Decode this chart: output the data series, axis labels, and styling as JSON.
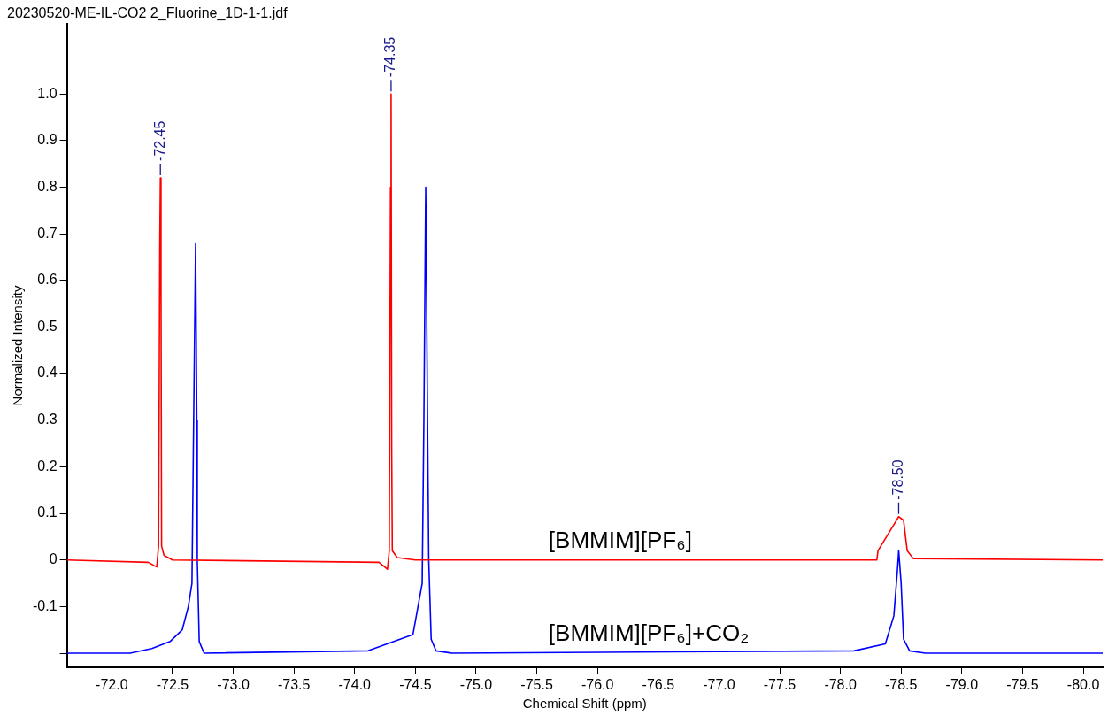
{
  "chart_data": {
    "type": "line",
    "title": "20230520-ME-IL-CO2 2_Fluorine_1D-1-1.jdf",
    "xlabel": "Chemical Shift (ppm)",
    "ylabel": "Normalized Intensity",
    "xlim": [
      -71.63,
      -80.16
    ],
    "xticks": [
      {
        "value": -72,
        "label": "-72.0"
      },
      -72.5,
      {
        "value": -73,
        "label": "-73.0"
      },
      -73.5,
      {
        "value": -74,
        "label": "-74.0"
      },
      -74.5,
      {
        "value": -75,
        "label": "-75.0"
      },
      -75.5,
      {
        "value": -76,
        "label": "-76.0"
      },
      -76.5,
      {
        "value": -77,
        "label": "-77.0"
      },
      -77.5,
      {
        "value": -78,
        "label": "-78.0"
      },
      -78.5,
      {
        "value": -79,
        "label": "-79.0"
      },
      -79.5,
      {
        "value": -80,
        "label": "-80.0"
      }
    ],
    "ylim": [
      -0.23,
      1.15
    ],
    "yticks": [
      {
        "value": -0.2,
        "label": null
      },
      -0.1,
      0,
      0.1,
      0.2,
      0.3,
      0.4,
      0.5,
      0.6,
      0.7,
      0.8,
      0.9,
      {
        "value": 1,
        "label": "1.0"
      }
    ],
    "grid": false,
    "legend": false,
    "marker": "none",
    "line_style": "solid",
    "series": [
      {
        "name": "[BMMIM][PF₆]",
        "color": "#ff0000",
        "x": [
          -71.63,
          -72.3,
          -72.37,
          -72.385,
          -72.395,
          -72.4,
          -72.405,
          -72.41,
          -72.43,
          -72.5,
          -74.2,
          -74.27,
          -74.285,
          -74.295,
          -74.3,
          -74.305,
          -74.31,
          -74.35,
          -74.5,
          -78.3,
          -78.31,
          -78.38,
          -78.45,
          -78.48,
          -78.52,
          -78.55,
          -78.6,
          -80.16
        ],
        "values": [
          0,
          -0.005,
          -0.015,
          0.03,
          0.67,
          0.82,
          0.6,
          0.03,
          0.01,
          0,
          -0.005,
          -0.02,
          0.02,
          0.8,
          1.0,
          0.23,
          0.02,
          0.005,
          0,
          0,
          0.02,
          0.05,
          0.08,
          0.093,
          0.085,
          0.02,
          0.003,
          0
        ]
      },
      {
        "name": "[BMMIM][PF₆]+CO₂",
        "color": "#0000ff",
        "x": [
          -71.63,
          -72.15,
          -72.33,
          -72.48,
          -72.58,
          -72.63,
          -72.66,
          -72.674,
          -72.69,
          -72.7,
          -72.704,
          -72.72,
          -72.76,
          -74.11,
          -74.48,
          -74.556,
          -74.57,
          -74.585,
          -74.6,
          -74.61,
          -74.63,
          -74.67,
          -74.8,
          -78.11,
          -78.37,
          -78.44,
          -78.47,
          -78.48,
          -78.5,
          -78.52,
          -78.57,
          -78.7,
          -80.16
        ],
        "values": [
          -0.2,
          -0.2,
          -0.19,
          -0.175,
          -0.15,
          -0.1,
          -0.05,
          0.3,
          0.68,
          0.3,
          0,
          -0.175,
          -0.2,
          -0.195,
          -0.16,
          -0.05,
          0.3,
          0.8,
          0.3,
          0,
          -0.17,
          -0.195,
          -0.2,
          -0.195,
          -0.18,
          -0.12,
          -0.02,
          0.02,
          -0.05,
          -0.17,
          -0.195,
          -0.2,
          -0.2
        ]
      }
    ],
    "annotations": [
      {
        "text": "-72.45",
        "x": -72.4,
        "y": 0.82
      },
      {
        "text": "-74.35",
        "x": -74.3,
        "y": 1.0
      },
      {
        "text": "-78.50",
        "x": -78.48,
        "y": 0.093
      }
    ]
  }
}
